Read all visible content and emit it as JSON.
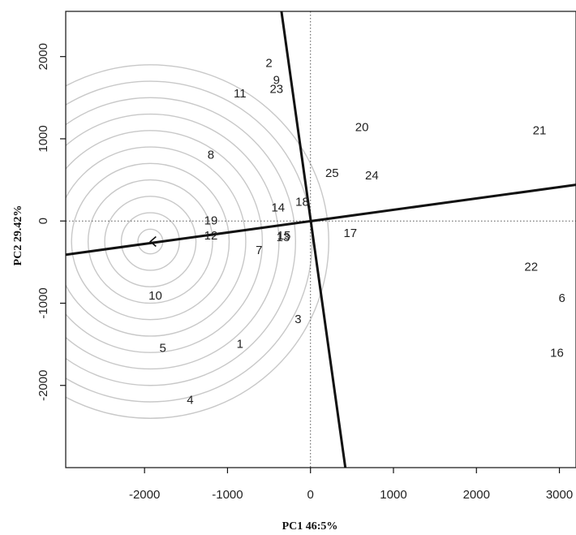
{
  "chart_data": {
    "type": "scatter",
    "title": "",
    "xlabel": "PC1 46:5%",
    "ylabel": "PC2 29.42%",
    "xlim": [
      -2950,
      3200
    ],
    "ylim": [
      -3000,
      2550
    ],
    "xticks": [
      -2000,
      -1000,
      0,
      1000,
      2000,
      3000
    ],
    "yticks": [
      -2000,
      -1000,
      0,
      1000,
      2000
    ],
    "xtick_labels": [
      "-2000",
      "-1000",
      "0",
      "1000",
      "2000",
      "3000"
    ],
    "ytick_labels": [
      "-2000",
      "-1000",
      "0",
      "1000",
      "2000"
    ],
    "grid": false,
    "reference_lines": {
      "x": 0,
      "y": 0,
      "style": "dotted"
    },
    "points": [
      {
        "label": "1",
        "x": -850,
        "y": -1500
      },
      {
        "label": "2",
        "x": -500,
        "y": 1920
      },
      {
        "label": "3",
        "x": -150,
        "y": -1200
      },
      {
        "label": "4",
        "x": -1450,
        "y": -2180
      },
      {
        "label": "5",
        "x": -1780,
        "y": -1550
      },
      {
        "label": "6",
        "x": 3030,
        "y": -940
      },
      {
        "label": "7",
        "x": -620,
        "y": -360
      },
      {
        "label": "8",
        "x": -1200,
        "y": 800
      },
      {
        "label": "9",
        "x": -410,
        "y": 1710
      },
      {
        "label": "10",
        "x": -1870,
        "y": -910
      },
      {
        "label": "11",
        "x": -850,
        "y": 1550
      },
      {
        "label": "12",
        "x": -1200,
        "y": -180
      },
      {
        "label": "13",
        "x": -330,
        "y": -200
      },
      {
        "label": "14",
        "x": -390,
        "y": 160
      },
      {
        "label": "15",
        "x": -320,
        "y": -180
      },
      {
        "label": "16",
        "x": 2970,
        "y": -1610
      },
      {
        "label": "17",
        "x": 480,
        "y": -150
      },
      {
        "label": "18",
        "x": -100,
        "y": 230
      },
      {
        "label": "19",
        "x": -1200,
        "y": 0
      },
      {
        "label": "20",
        "x": 620,
        "y": 1140
      },
      {
        "label": "21",
        "x": 2760,
        "y": 1100
      },
      {
        "label": "22",
        "x": 2660,
        "y": -560
      },
      {
        "label": "23",
        "x": -410,
        "y": 1600
      },
      {
        "label": "24",
        "x": 740,
        "y": 550
      },
      {
        "label": "25",
        "x": 260,
        "y": 580
      }
    ],
    "axis_lines": [
      {
        "from": [
          -2950,
          -410
        ],
        "to": [
          3200,
          440
        ]
      },
      {
        "from": [
          -350,
          2550
        ],
        "to": [
          420,
          -3000
        ]
      }
    ],
    "origin_marker": {
      "x": -1930,
      "y": -250
    },
    "circles": {
      "center": [
        -1930,
        -250
      ],
      "radii": [
        150,
        350,
        550,
        750,
        950,
        1150,
        1350,
        1550,
        1750,
        1950,
        2150
      ]
    },
    "colors": {
      "circles": "#c8c8c8",
      "lines": "#111111",
      "text": "#222222"
    }
  }
}
